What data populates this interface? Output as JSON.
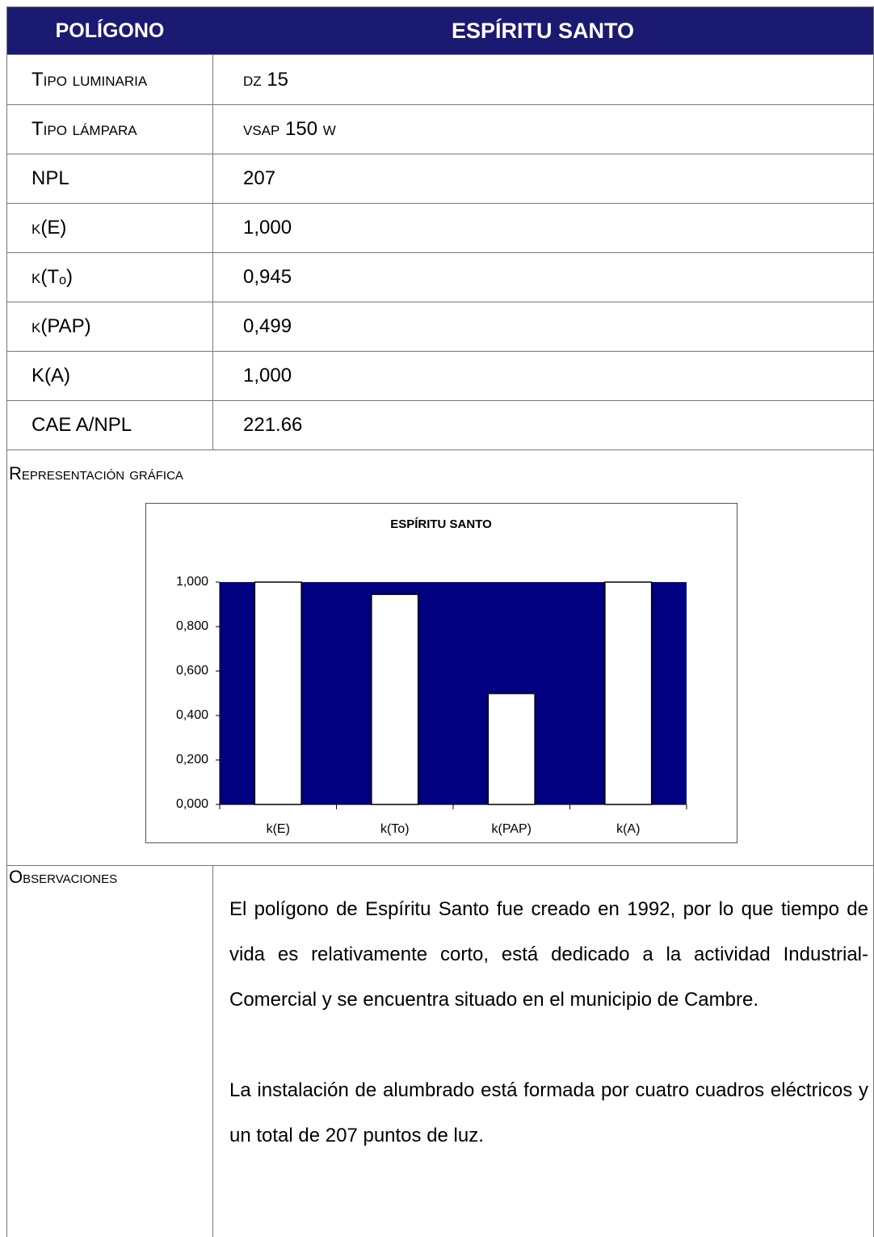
{
  "header": {
    "label": "POLÍGONO",
    "title": "ESPÍRITU SANTO"
  },
  "rows": [
    [
      "Tipo luminaria",
      "dz 15"
    ],
    [
      "Tipo lámpara",
      "vsap 150 w"
    ],
    [
      "NPL",
      "207"
    ],
    [
      "k(E)",
      "1,000"
    ],
    [
      "k(Tₒ)",
      "0,945"
    ],
    [
      "k(PAP)",
      "0,499"
    ],
    [
      "K(A)",
      "1,000"
    ],
    [
      "CAE A/NPL",
      "221.66"
    ]
  ],
  "section_label": "Representación gráfica",
  "chart_data": {
    "type": "bar",
    "title": "ESPÍRITU SANTO",
    "categories": [
      "k(E)",
      "k(To)",
      "k(PAP)",
      "k(A)"
    ],
    "values": [
      1.0,
      0.945,
      0.499,
      1.0
    ],
    "color": "#ffffff",
    "background": "#000080",
    "ylim": [
      0,
      1
    ],
    "yticks": [
      {
        "value": 0,
        "label": "0,000"
      },
      {
        "value": 0.2,
        "label": "0,200"
      },
      {
        "value": 0.4,
        "label": "0,400"
      },
      {
        "value": 0.6,
        "label": "0,600"
      },
      {
        "value": 0.8,
        "label": "0,800"
      },
      {
        "value": 1,
        "label": "1,000"
      }
    ]
  },
  "observations": {
    "label": "Observaciones",
    "paragraphs": [
      "El polígono de Espíritu Santo fue creado en 1992, por lo que tiempo de vida es relativamente corto, está dedicado a la actividad Industrial-Comercial y se encuentra situado en el municipio de Cambre.",
      "La instalación de alumbrado está formada por cuatro cuadros eléctricos y un total de 207 puntos de luz."
    ]
  }
}
